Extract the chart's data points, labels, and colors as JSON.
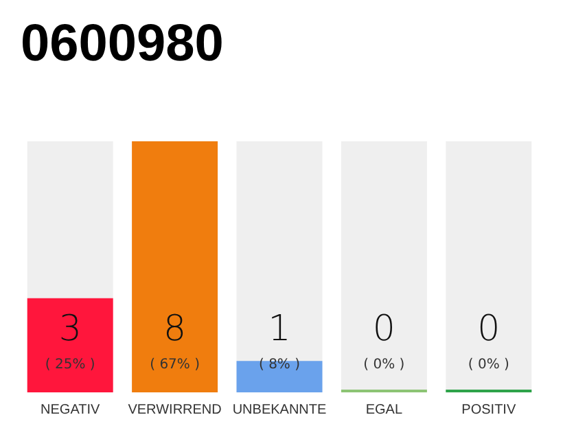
{
  "chart_data": {
    "type": "bar",
    "title": "0600980",
    "categories": [
      "NEGATIV",
      "VERWIRREND",
      "UNBEKANNTE",
      "EGAL",
      "POSITIV"
    ],
    "values": [
      3,
      8,
      1,
      0,
      0
    ],
    "colors": [
      "#ff163c",
      "#f07d0e",
      "#6aa2ec",
      "#8cc474",
      "#2ea34a"
    ],
    "data_labels": true,
    "annotations": [
      "( 25% )",
      "( 67% )",
      "( 8% )",
      "( 0% )",
      "( 0% )"
    ]
  }
}
